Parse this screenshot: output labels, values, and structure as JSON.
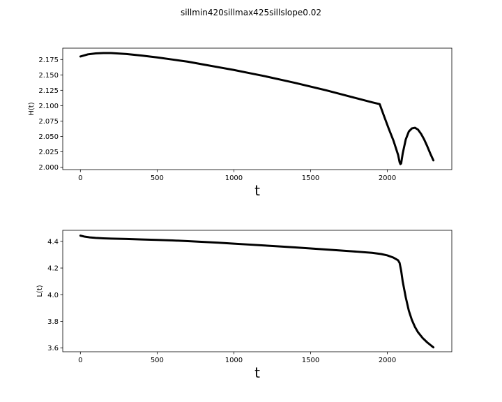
{
  "figure": {
    "title": "sillmin420sillmax425sillslope0.02"
  },
  "chart_data": [
    {
      "type": "line",
      "xlabel": "t",
      "ylabel": "H(t)",
      "xlim": [
        -115,
        2420
      ],
      "ylim": [
        1.996,
        2.1935
      ],
      "xticks": [
        0,
        500,
        1000,
        1500,
        2000
      ],
      "xtick_labels": [
        "0",
        "500",
        "1000",
        "1500",
        "2000"
      ],
      "yticks": [
        2.0,
        2.025,
        2.05,
        2.075,
        2.1,
        2.125,
        2.15,
        2.175
      ],
      "ytick_labels": [
        "2.000",
        "2.025",
        "2.050",
        "2.075",
        "2.100",
        "2.125",
        "2.150",
        "2.175"
      ],
      "grid": false,
      "series": [
        {
          "color": "#000000",
          "x": [
            0,
            50,
            100,
            150,
            200,
            300,
            400,
            500,
            600,
            700,
            800,
            900,
            1000,
            1100,
            1200,
            1300,
            1400,
            1500,
            1600,
            1700,
            1800,
            1900,
            1950,
            1980,
            2010,
            2040,
            2070,
            2080,
            2085,
            2090,
            2100,
            2120,
            2140,
            2160,
            2180,
            2200,
            2220,
            2240,
            2260,
            2280,
            2300
          ],
          "y": [
            2.18,
            2.1835,
            2.185,
            2.1855,
            2.1855,
            2.184,
            2.1815,
            2.1785,
            2.175,
            2.1715,
            2.167,
            2.1625,
            2.158,
            2.153,
            2.148,
            2.1425,
            2.137,
            2.131,
            2.125,
            2.1185,
            2.112,
            2.1055,
            2.1025,
            2.082,
            2.062,
            2.043,
            2.02,
            2.008,
            2.005,
            2.006,
            2.022,
            2.045,
            2.058,
            2.063,
            2.064,
            2.061,
            2.054,
            2.045,
            2.034,
            2.022,
            2.011
          ]
        }
      ]
    },
    {
      "type": "line",
      "xlabel": "t",
      "ylabel": "L(t)",
      "xlim": [
        -115,
        2420
      ],
      "ylim": [
        3.572,
        4.483
      ],
      "xticks": [
        0,
        500,
        1000,
        1500,
        2000
      ],
      "xtick_labels": [
        "0",
        "500",
        "1000",
        "1500",
        "2000"
      ],
      "yticks": [
        3.6,
        3.8,
        4.0,
        4.2,
        4.4
      ],
      "ytick_labels": [
        "3.6",
        "3.8",
        "4.0",
        "4.2",
        "4.4"
      ],
      "grid": false,
      "series": [
        {
          "color": "#000000",
          "x": [
            0,
            30,
            60,
            100,
            150,
            200,
            300,
            400,
            500,
            600,
            700,
            800,
            900,
            1000,
            1100,
            1200,
            1300,
            1400,
            1500,
            1600,
            1700,
            1800,
            1900,
            1960,
            2000,
            2040,
            2070,
            2080,
            2090,
            2100,
            2120,
            2140,
            2160,
            2180,
            2200,
            2230,
            2260,
            2300
          ],
          "y": [
            4.443,
            4.435,
            4.43,
            4.426,
            4.423,
            4.421,
            4.418,
            4.414,
            4.411,
            4.407,
            4.402,
            4.396,
            4.39,
            4.383,
            4.376,
            4.369,
            4.362,
            4.355,
            4.347,
            4.339,
            4.331,
            4.323,
            4.314,
            4.305,
            4.295,
            4.278,
            4.258,
            4.238,
            4.18,
            4.1,
            3.98,
            3.88,
            3.81,
            3.758,
            3.718,
            3.675,
            3.642,
            3.605
          ]
        }
      ]
    }
  ]
}
